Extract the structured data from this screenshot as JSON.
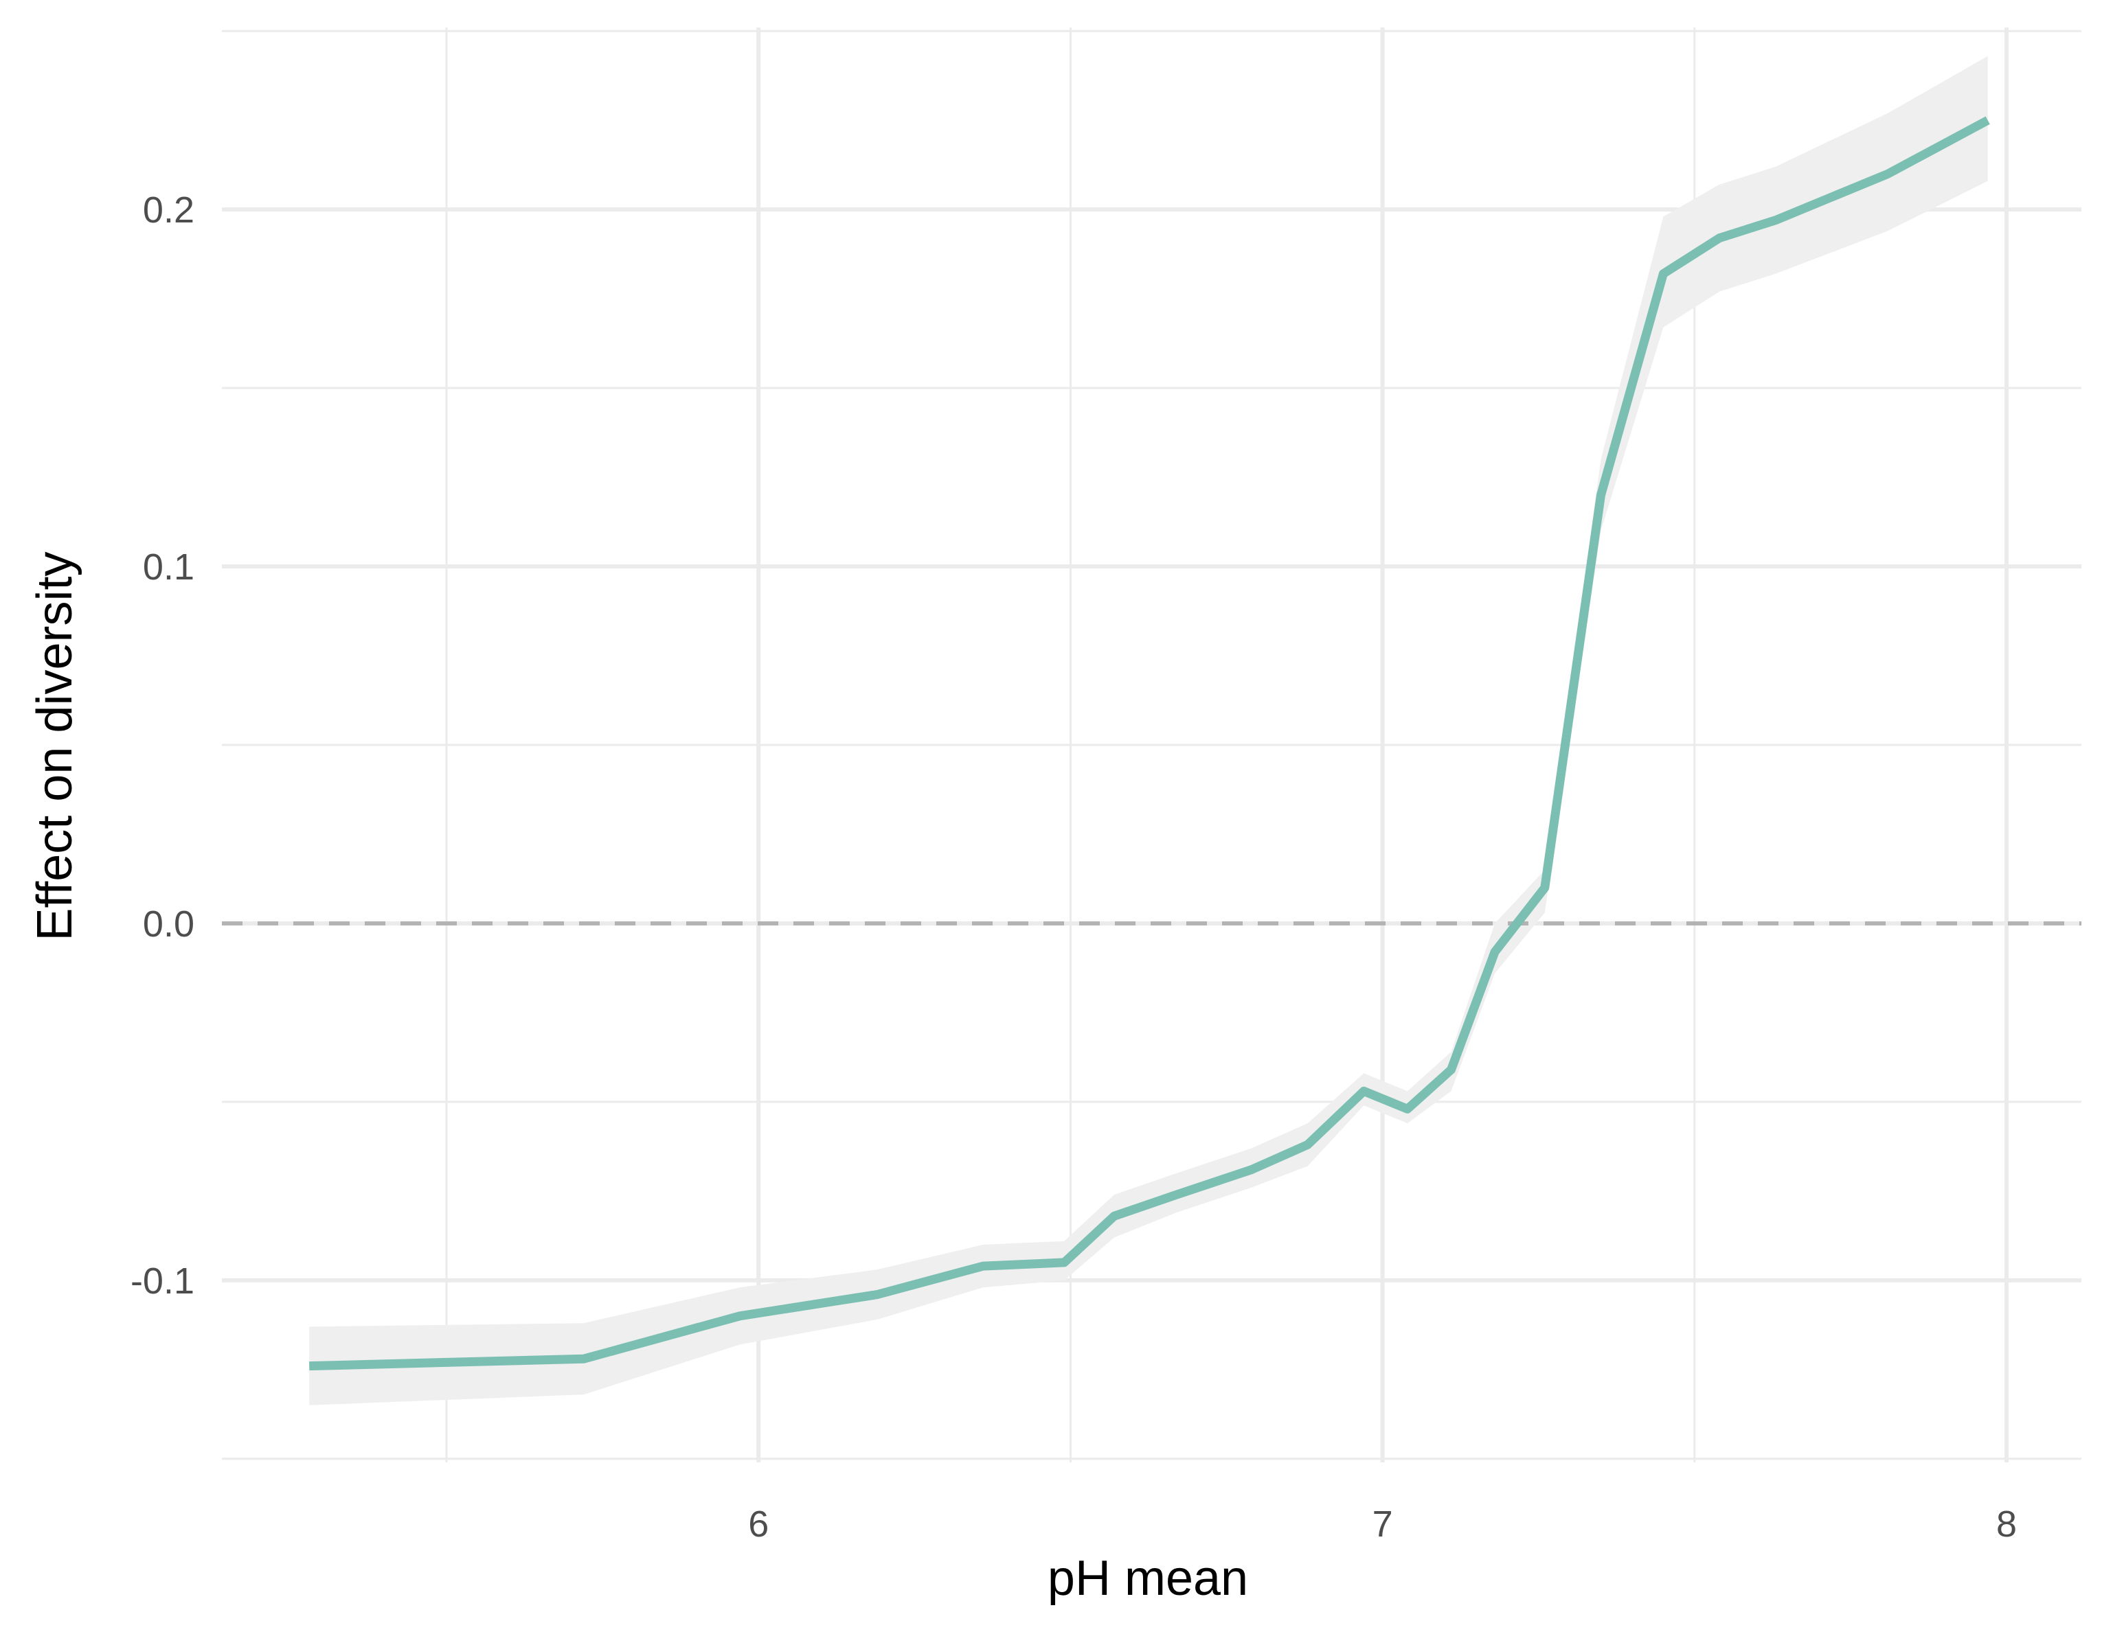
{
  "chart_data": {
    "type": "line",
    "title": "",
    "xlabel": "pH mean",
    "ylabel": "Effect on diversity",
    "xlim": [
      5.14,
      8.12
    ],
    "ylim": [
      -0.151,
      0.251
    ],
    "x_ticks": [
      6,
      7,
      8
    ],
    "x_tick_labels": [
      "6",
      "7",
      "8"
    ],
    "x_minor_ticks": [
      5.5,
      6.5,
      7.5
    ],
    "y_ticks": [
      -0.1,
      0.0,
      0.1,
      0.2
    ],
    "y_tick_labels": [
      "-0.1",
      "0.0",
      "0.1",
      "0.2"
    ],
    "y_minor_ticks": [
      -0.15,
      -0.05,
      0.05,
      0.15,
      0.25
    ],
    "grid": true,
    "reference_line": {
      "y": 0.0,
      "style": "dashed",
      "color": "#b3b3b3"
    },
    "colors": {
      "line": "#7bbfb2",
      "ribbon": "#efefef",
      "grid": "#ebebeb"
    },
    "series": [
      {
        "x": [
          5.28,
          5.72,
          5.97,
          6.19,
          6.36,
          6.49,
          6.57,
          6.67,
          6.79,
          6.88,
          6.97,
          7.04,
          7.11,
          7.18,
          7.26,
          7.35,
          7.45,
          7.54,
          7.63,
          7.81,
          7.97
        ],
        "y": [
          -0.124,
          -0.122,
          -0.11,
          -0.104,
          -0.096,
          -0.095,
          -0.082,
          -0.076,
          -0.069,
          -0.062,
          -0.047,
          -0.052,
          -0.041,
          -0.008,
          0.01,
          0.12,
          0.182,
          0.192,
          0.197,
          0.21,
          0.225
        ],
        "lower": [
          -0.135,
          -0.132,
          -0.118,
          -0.111,
          -0.102,
          -0.1,
          -0.088,
          -0.081,
          -0.074,
          -0.068,
          -0.051,
          -0.056,
          -0.047,
          -0.014,
          0.003,
          0.11,
          0.167,
          0.177,
          0.182,
          0.194,
          0.208
        ],
        "upper": [
          -0.113,
          -0.112,
          -0.102,
          -0.097,
          -0.09,
          -0.089,
          -0.076,
          -0.07,
          -0.063,
          -0.056,
          -0.042,
          -0.047,
          -0.036,
          0.0,
          0.015,
          0.13,
          0.198,
          0.207,
          0.212,
          0.227,
          0.243
        ]
      }
    ]
  }
}
